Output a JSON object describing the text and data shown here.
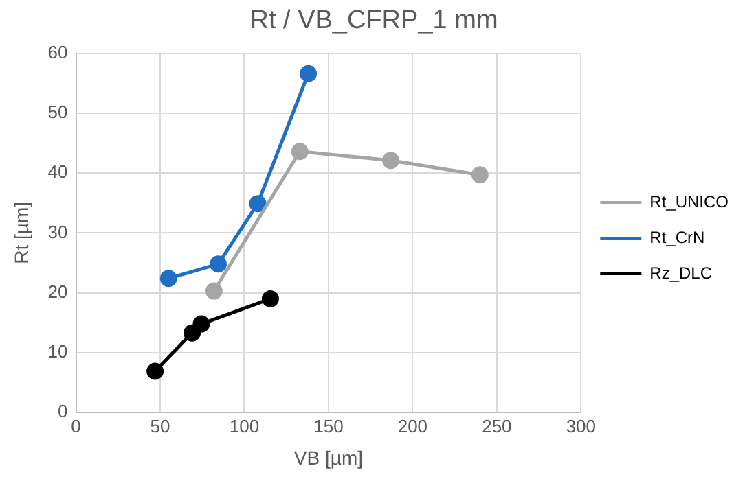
{
  "chart_data": {
    "type": "line",
    "title": "Rt / VB_CFRP_1 mm",
    "xlabel": "VB [µm]",
    "ylabel": "Rt [µm]",
    "xlim": [
      0,
      300
    ],
    "xticks": [
      0,
      50,
      100,
      150,
      200,
      250,
      300
    ],
    "ylim": [
      0,
      60
    ],
    "yticks": [
      0,
      10,
      20,
      30,
      40,
      50,
      60
    ],
    "grid": true,
    "legend": "right",
    "marker": "circle",
    "line_style": "solid",
    "series": [
      {
        "name": "Rt_UNICO",
        "color": "#a5a5a5",
        "x": [
          82,
          133,
          187,
          240
        ],
        "values": [
          20.3,
          43.6,
          42.1,
          39.7
        ]
      },
      {
        "name": "Rt_CrN",
        "color": "#1f6fc5",
        "x": [
          55,
          84.5,
          108,
          138
        ],
        "values": [
          22.4,
          24.8,
          34.9,
          56.6
        ]
      },
      {
        "name": "Rz_DLC",
        "color": "#000000",
        "x": [
          47,
          69,
          74.5,
          115.5
        ],
        "values": [
          6.9,
          13.3,
          14.8,
          19.0
        ]
      }
    ]
  }
}
